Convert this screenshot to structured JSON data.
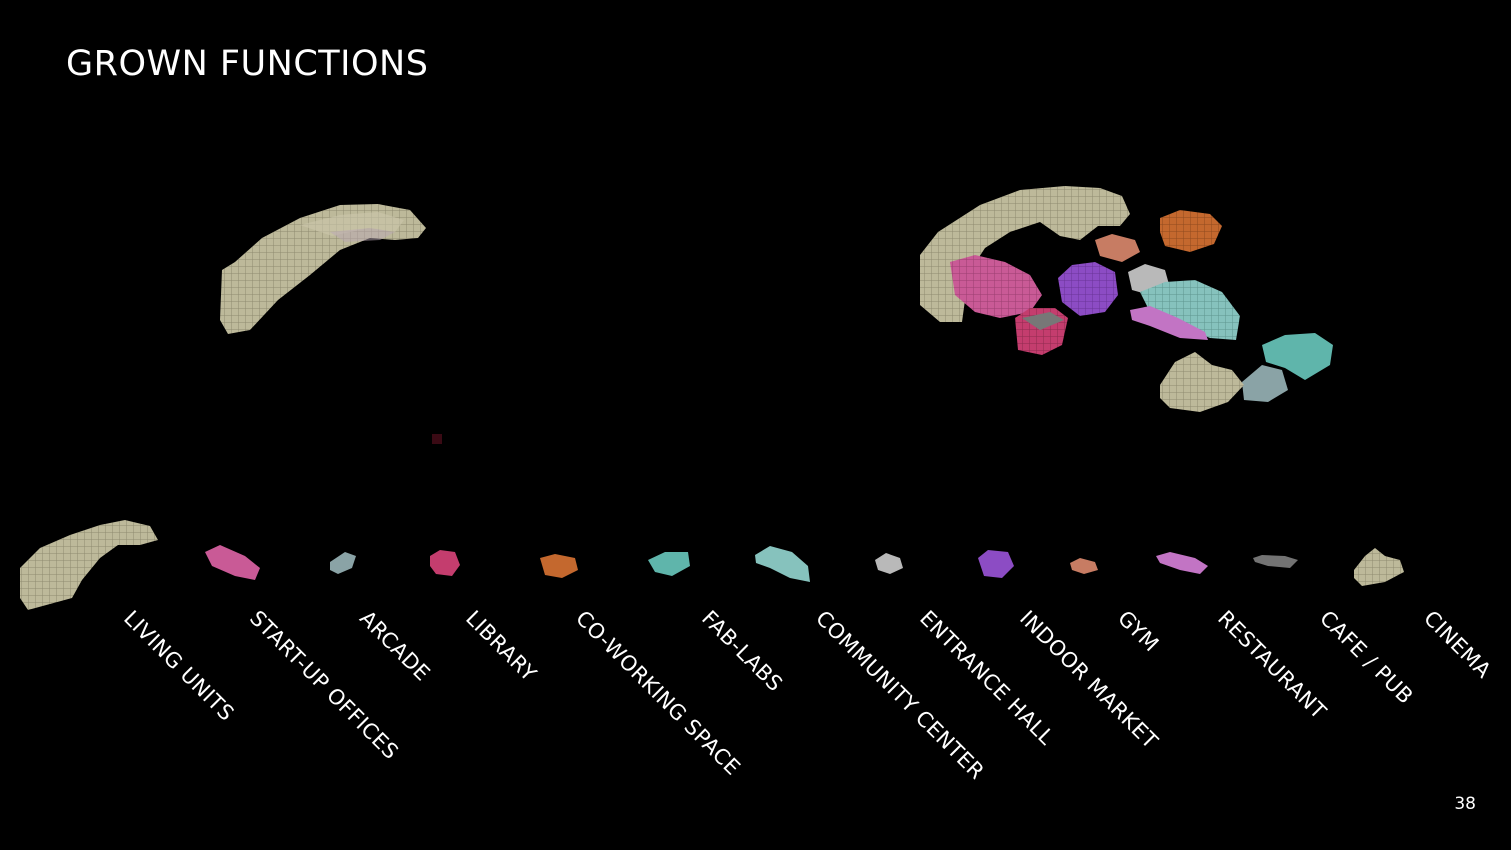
{
  "title": "GROWN FUNCTIONS",
  "page_number": "38",
  "legend": [
    {
      "label": "LIVING UNITS",
      "color": "#bdb99a"
    },
    {
      "label": "START-UP OFFICES",
      "color": "#c95a96"
    },
    {
      "label": "ARCADE",
      "color": "#8aa3a6"
    },
    {
      "label": "LIBRARY",
      "color": "#c43d6e"
    },
    {
      "label": "CO-WORKING SPACE",
      "color": "#c4682e"
    },
    {
      "label": "FAB-LABS",
      "color": "#5fb5ab"
    },
    {
      "label": "COMMUNITY CENTER",
      "color": "#86c2bd"
    },
    {
      "label": "ENTRANCE HALL",
      "color": "#b9b9b9"
    },
    {
      "label": "INDOOR MARKET",
      "color": "#8c4cc4"
    },
    {
      "label": "GYM",
      "color": "#c77c63"
    },
    {
      "label": "RESTAURANT",
      "color": "#c274c4"
    },
    {
      "label": "CAFE / PUB",
      "color": "#737373"
    },
    {
      "label": "CINEMA",
      "color": "#d2c9a8"
    }
  ]
}
